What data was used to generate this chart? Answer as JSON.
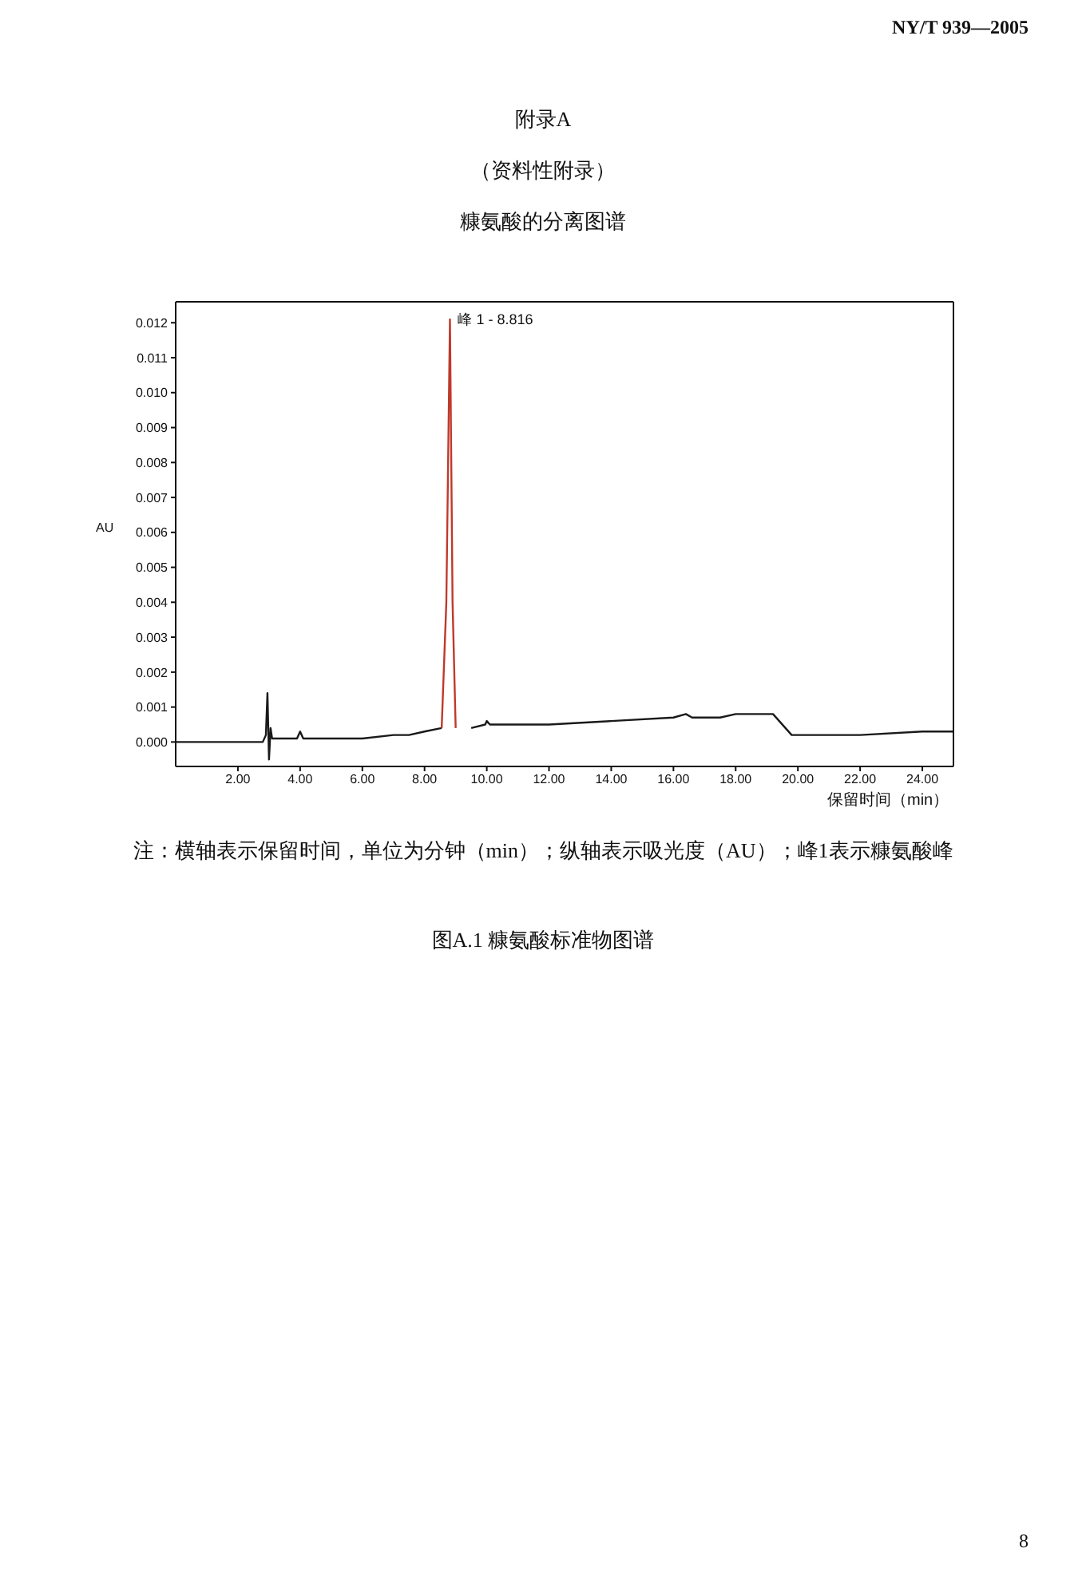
{
  "chart_data": {
    "type": "line",
    "title": "附录A",
    "subtitle": "（资料性附录）",
    "ylabel": "AU",
    "xlabel": "保留时间（min）",
    "xlim": [
      0,
      25
    ],
    "ylim": [
      -0.0007,
      0.0126
    ],
    "xticks": [
      {
        "value": 2,
        "label": "2.00"
      },
      {
        "value": 4,
        "label": "4.00"
      },
      {
        "value": 6,
        "label": "6.00"
      },
      {
        "value": 8,
        "label": "8.00"
      },
      {
        "value": 10,
        "label": "10.00"
      },
      {
        "value": 12,
        "label": "12.00"
      },
      {
        "value": 14,
        "label": "14.00"
      },
      {
        "value": 16,
        "label": "16.00"
      },
      {
        "value": 18,
        "label": "18.00"
      },
      {
        "value": 20,
        "label": "20.00"
      },
      {
        "value": 22,
        "label": "22.00"
      },
      {
        "value": 24,
        "label": "24.00"
      }
    ],
    "yticks": [
      {
        "value": 0,
        "label": "0.000"
      },
      0.001,
      0.002,
      0.003,
      0.004,
      0.005,
      0.006,
      0.007,
      0.008,
      0.009,
      {
        "value": 0.01,
        "label": "0.010"
      },
      0.011,
      0.012
    ],
    "marker": "none",
    "line_style": "solid",
    "series": [
      {
        "color": "#1a1a1a",
        "x": [
          0,
          1.5,
          2.8,
          2.9,
          2.95,
          3.0,
          3.05,
          3.1,
          3.2,
          3.9,
          4.0,
          4.1,
          5,
          6,
          7,
          7.5,
          8,
          8.55,
          9.0,
          9.5,
          9.95,
          10.0,
          10.1,
          12,
          14,
          16,
          16.4,
          16.6,
          17.5,
          18,
          19.2,
          19.8,
          20,
          22,
          24,
          25
        ],
        "values": [
          0,
          0,
          0,
          0.0002,
          0.0014,
          -0.0005,
          0.0004,
          0.0001,
          0.0001,
          0.0001,
          0.0003,
          0.0001,
          0.0001,
          0.0001,
          0.0002,
          0.0002,
          0.0003,
          0.0004,
          null,
          0.0004,
          0.0005,
          0.0006,
          0.0005,
          0.0005,
          0.0006,
          0.0007,
          0.0008,
          0.0007,
          0.0007,
          0.0008,
          0.0008,
          0.0002,
          0.0002,
          0.0002,
          0.0003,
          0.0003
        ]
      },
      {
        "color": "#c0392b",
        "x": [
          8.55,
          8.7,
          8.816,
          8.9,
          9.0
        ],
        "values": [
          0.0004,
          0.004,
          0.0121,
          0.004,
          0.0004
        ]
      }
    ],
    "annotations": [
      "NY/T 939—2005",
      "糠氨酸的分离图谱",
      "注：横轴表示保留时间，单位为分钟（min）；纵轴表示吸光度（AU）；峰1表示糠氨酸峰",
      "图A.1 糠氨酸标准物图谱",
      "8",
      {
        "text": "峰 1 - 8.816",
        "x": 8.816,
        "y": 0.0121
      }
    ]
  }
}
